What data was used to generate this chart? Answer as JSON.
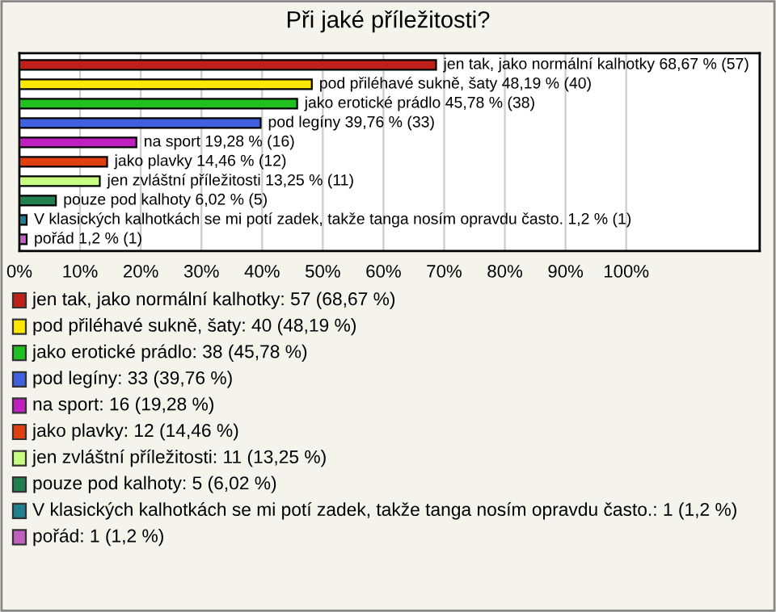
{
  "chart_data": {
    "type": "bar",
    "orientation": "horizontal",
    "title": "Při jaké příležitosti?",
    "categories": [
      "jen tak, jako normální kalhotky",
      "pod přiléhavé sukně, šaty",
      "jako erotické prádlo",
      "pod legíny",
      "na sport",
      "jako plavky",
      "jen zvláštní příležitosti",
      "pouze pod kalhoty",
      "V klasických kalhotkách se mi potí zadek, takže tanga nosím opravdu často.",
      "pořád"
    ],
    "values": [
      68.67,
      48.19,
      45.78,
      39.76,
      19.28,
      14.46,
      13.25,
      6.02,
      1.2,
      1.2
    ],
    "colors": [
      "#c0201a",
      "#ffe800",
      "#20c020",
      "#4060e0",
      "#c020c0",
      "#e04010",
      "#c8ff80",
      "#208050",
      "#208090",
      "#c060c0"
    ],
    "value_labels": [
      "68,67 % (57)",
      "48,19 % (40)",
      "45,78 % (38)",
      "39,76 % (33)",
      "19,28 % (16)",
      "14,46 % (12)",
      "13,25 % (11)",
      "6,02 % (5)",
      "1,2 % (1)",
      "1,2 % (1)"
    ],
    "xlim": [
      0,
      122
    ],
    "xticks": [
      {
        "value": 0,
        "label": "0%"
      },
      {
        "value": 10,
        "label": "10%"
      },
      {
        "value": 20,
        "label": "20%"
      },
      {
        "value": 30,
        "label": "30%"
      },
      {
        "value": 40,
        "label": "40%"
      },
      {
        "value": 50,
        "label": "50%"
      },
      {
        "value": 60,
        "label": "60%"
      },
      {
        "value": 70,
        "label": "70%"
      },
      {
        "value": 80,
        "label": "80%"
      },
      {
        "value": 90,
        "label": "90%"
      },
      {
        "value": 100,
        "label": "100%"
      }
    ],
    "tick_labels": "x",
    "grid": "x",
    "annotations": [
      "jen tak, jako normální kalhotky: 57 (68,67 %)",
      "pod přiléhavé sukně, šaty: 40 (48,19 %)",
      "jako erotické prádlo: 38 (45,78 %)",
      "pod legíny: 33 (39,76 %)",
      "na sport: 16 (19,28 %)",
      "jako plavky: 12 (14,46 %)",
      "jen zvláštní příležitosti: 11 (13,25 %)",
      "pouze pod kalhoty: 5 (6,02 %)",
      "V klasických kalhotkách se mi potí zadek, takže tanga nosím opravdu často.: 1 (1,2 %)",
      "pořád: 1 (1,2 %)"
    ]
  }
}
